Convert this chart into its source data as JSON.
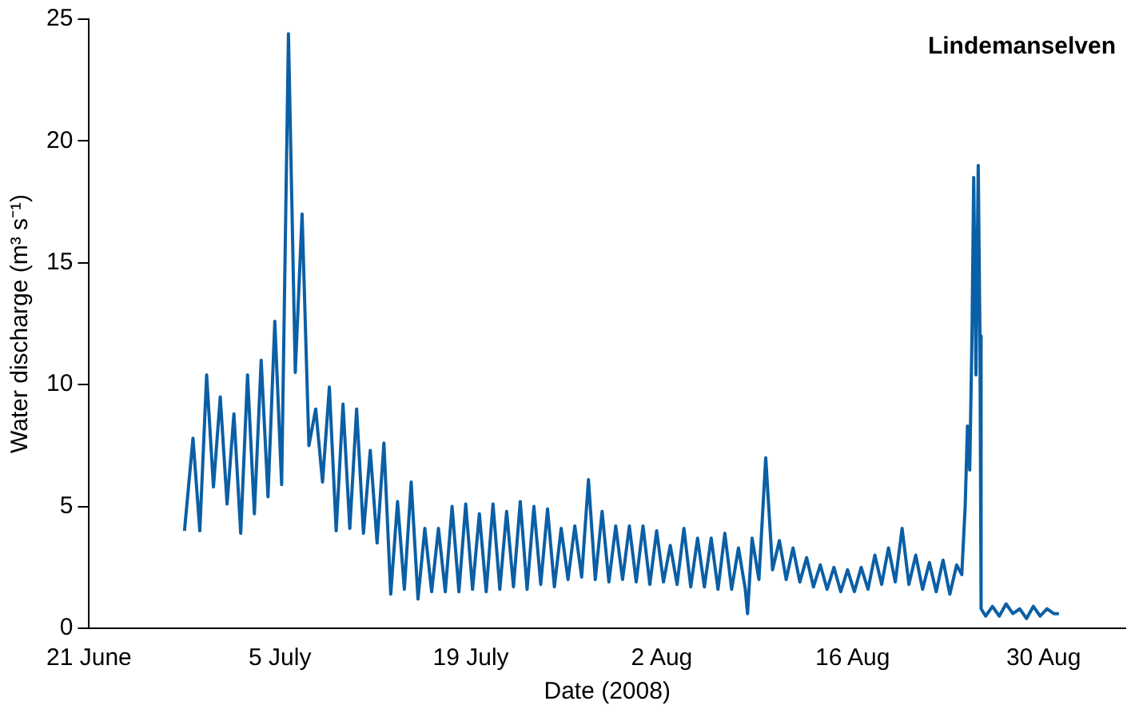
{
  "chart_data": {
    "type": "line",
    "xlabel": "Date (2008)",
    "ylabel": "Water discharge (m³ s⁻¹)",
    "annotations": [
      "Lindemanselven"
    ],
    "xlim": [
      "2008-06-21",
      "2008-09-05"
    ],
    "xticks": [
      {
        "value": "2008-06-21",
        "label": "21 June"
      },
      {
        "value": "2008-07-05",
        "label": "5 July"
      },
      {
        "value": "2008-07-19",
        "label": "19 July"
      },
      {
        "value": "2008-08-02",
        "label": "2 Aug"
      },
      {
        "value": "2008-08-16",
        "label": "16 Aug"
      },
      {
        "value": "2008-08-30",
        "label": "30 Aug"
      }
    ],
    "ylim": [
      0,
      25
    ],
    "yticks": [
      0,
      5,
      10,
      15,
      20,
      25
    ],
    "grid": false,
    "legend": false,
    "marker": "none",
    "line_style": "solid",
    "x": [
      "2008-06-28T00:00",
      "2008-06-28T15:00",
      "2008-06-29T03:00",
      "2008-06-29T15:00",
      "2008-06-30T03:00",
      "2008-06-30T15:00",
      "2008-07-01T03:00",
      "2008-07-01T15:00",
      "2008-07-02T03:00",
      "2008-07-02T15:00",
      "2008-07-03T03:00",
      "2008-07-03T15:00",
      "2008-07-04T03:00",
      "2008-07-04T15:00",
      "2008-07-05T03:00",
      "2008-07-05T15:00",
      "2008-07-06T03:00",
      "2008-07-06T15:00",
      "2008-07-07T03:00",
      "2008-07-07T15:00",
      "2008-07-08T03:00",
      "2008-07-08T15:00",
      "2008-07-09T03:00",
      "2008-07-09T15:00",
      "2008-07-10T03:00",
      "2008-07-10T15:00",
      "2008-07-11T03:00",
      "2008-07-11T15:00",
      "2008-07-12T03:00",
      "2008-07-12T15:00",
      "2008-07-13T03:00",
      "2008-07-13T15:00",
      "2008-07-14T03:00",
      "2008-07-14T15:00",
      "2008-07-15T03:00",
      "2008-07-15T15:00",
      "2008-07-16T03:00",
      "2008-07-16T15:00",
      "2008-07-17T03:00",
      "2008-07-17T15:00",
      "2008-07-18T03:00",
      "2008-07-18T15:00",
      "2008-07-19T03:00",
      "2008-07-19T15:00",
      "2008-07-20T03:00",
      "2008-07-20T15:00",
      "2008-07-21T03:00",
      "2008-07-21T15:00",
      "2008-07-22T03:00",
      "2008-07-22T15:00",
      "2008-07-23T03:00",
      "2008-07-23T15:00",
      "2008-07-24T03:00",
      "2008-07-24T15:00",
      "2008-07-25T03:00",
      "2008-07-25T15:00",
      "2008-07-26T03:00",
      "2008-07-26T15:00",
      "2008-07-27T03:00",
      "2008-07-27T15:00",
      "2008-07-28T03:00",
      "2008-07-28T15:00",
      "2008-07-29T03:00",
      "2008-07-29T15:00",
      "2008-07-30T03:00",
      "2008-07-30T15:00",
      "2008-07-31T03:00",
      "2008-07-31T15:00",
      "2008-08-01T03:00",
      "2008-08-01T15:00",
      "2008-08-02T03:00",
      "2008-08-02T15:00",
      "2008-08-03T03:00",
      "2008-08-03T15:00",
      "2008-08-04T03:00",
      "2008-08-04T15:00",
      "2008-08-05T03:00",
      "2008-08-05T15:00",
      "2008-08-06T03:00",
      "2008-08-06T15:00",
      "2008-08-07T03:00",
      "2008-08-07T15:00",
      "2008-08-08T03:00",
      "2008-08-08T07:00",
      "2008-08-08T15:00",
      "2008-08-09T03:00",
      "2008-08-09T15:00",
      "2008-08-10T03:00",
      "2008-08-10T15:00",
      "2008-08-11T03:00",
      "2008-08-11T15:00",
      "2008-08-12T03:00",
      "2008-08-12T15:00",
      "2008-08-13T03:00",
      "2008-08-13T15:00",
      "2008-08-14T03:00",
      "2008-08-14T15:00",
      "2008-08-15T03:00",
      "2008-08-15T15:00",
      "2008-08-16T03:00",
      "2008-08-16T15:00",
      "2008-08-17T03:00",
      "2008-08-17T15:00",
      "2008-08-18T03:00",
      "2008-08-18T15:00",
      "2008-08-19T03:00",
      "2008-08-19T15:00",
      "2008-08-20T03:00",
      "2008-08-20T15:00",
      "2008-08-21T03:00",
      "2008-08-21T15:00",
      "2008-08-22T03:00",
      "2008-08-22T15:00",
      "2008-08-23T03:00",
      "2008-08-23T15:00",
      "2008-08-24T00:00",
      "2008-08-24T06:00",
      "2008-08-24T10:00",
      "2008-08-24T14:00",
      "2008-08-24T18:00",
      "2008-08-24T21:00",
      "2008-08-25T01:00",
      "2008-08-25T05:00",
      "2008-08-25T08:00",
      "2008-08-25T10:00",
      "2008-08-25T18:00",
      "2008-08-26T06:00",
      "2008-08-26T18:00",
      "2008-08-27T06:00",
      "2008-08-27T18:00",
      "2008-08-28T06:00",
      "2008-08-28T18:00",
      "2008-08-29T06:00",
      "2008-08-29T18:00",
      "2008-08-30T06:00",
      "2008-08-30T18:00",
      "2008-08-31T03:00"
    ],
    "series": [
      {
        "color": "#0b5fa5",
        "values": [
          4.0,
          7.8,
          4.0,
          10.4,
          5.8,
          9.5,
          5.1,
          8.8,
          3.9,
          10.4,
          4.7,
          11.0,
          5.4,
          12.6,
          5.9,
          24.4,
          10.5,
          17.0,
          7.5,
          9.0,
          6.0,
          9.9,
          4.0,
          9.2,
          4.1,
          9.0,
          3.9,
          7.3,
          3.5,
          7.6,
          1.4,
          5.2,
          1.6,
          6.0,
          1.2,
          4.1,
          1.5,
          4.1,
          1.5,
          5.0,
          1.5,
          5.1,
          1.6,
          4.7,
          1.5,
          5.1,
          1.6,
          4.8,
          1.7,
          5.2,
          1.6,
          5.0,
          1.8,
          4.9,
          1.7,
          4.1,
          2.0,
          4.2,
          2.1,
          6.1,
          2.0,
          4.8,
          1.9,
          4.2,
          2.0,
          4.2,
          1.9,
          4.2,
          1.8,
          4.0,
          1.9,
          3.4,
          1.8,
          4.1,
          1.7,
          3.7,
          1.7,
          3.7,
          1.6,
          3.9,
          1.6,
          3.3,
          1.6,
          0.6,
          3.7,
          2.0,
          7.0,
          2.4,
          3.6,
          2.0,
          3.3,
          1.9,
          2.9,
          1.7,
          2.6,
          1.6,
          2.5,
          1.5,
          2.4,
          1.5,
          2.5,
          1.6,
          3.0,
          1.8,
          3.3,
          1.9,
          4.1,
          1.8,
          3.0,
          1.6,
          2.7,
          1.5,
          2.8,
          1.4,
          2.6,
          2.2,
          5.0,
          8.3,
          6.5,
          12.0,
          18.5,
          10.4,
          19.0,
          12.0,
          0.8,
          0.5,
          0.9,
          0.5,
          1.0,
          0.6,
          0.8,
          0.4,
          0.9,
          0.5,
          0.8,
          0.6,
          0.6
        ]
      }
    ]
  }
}
